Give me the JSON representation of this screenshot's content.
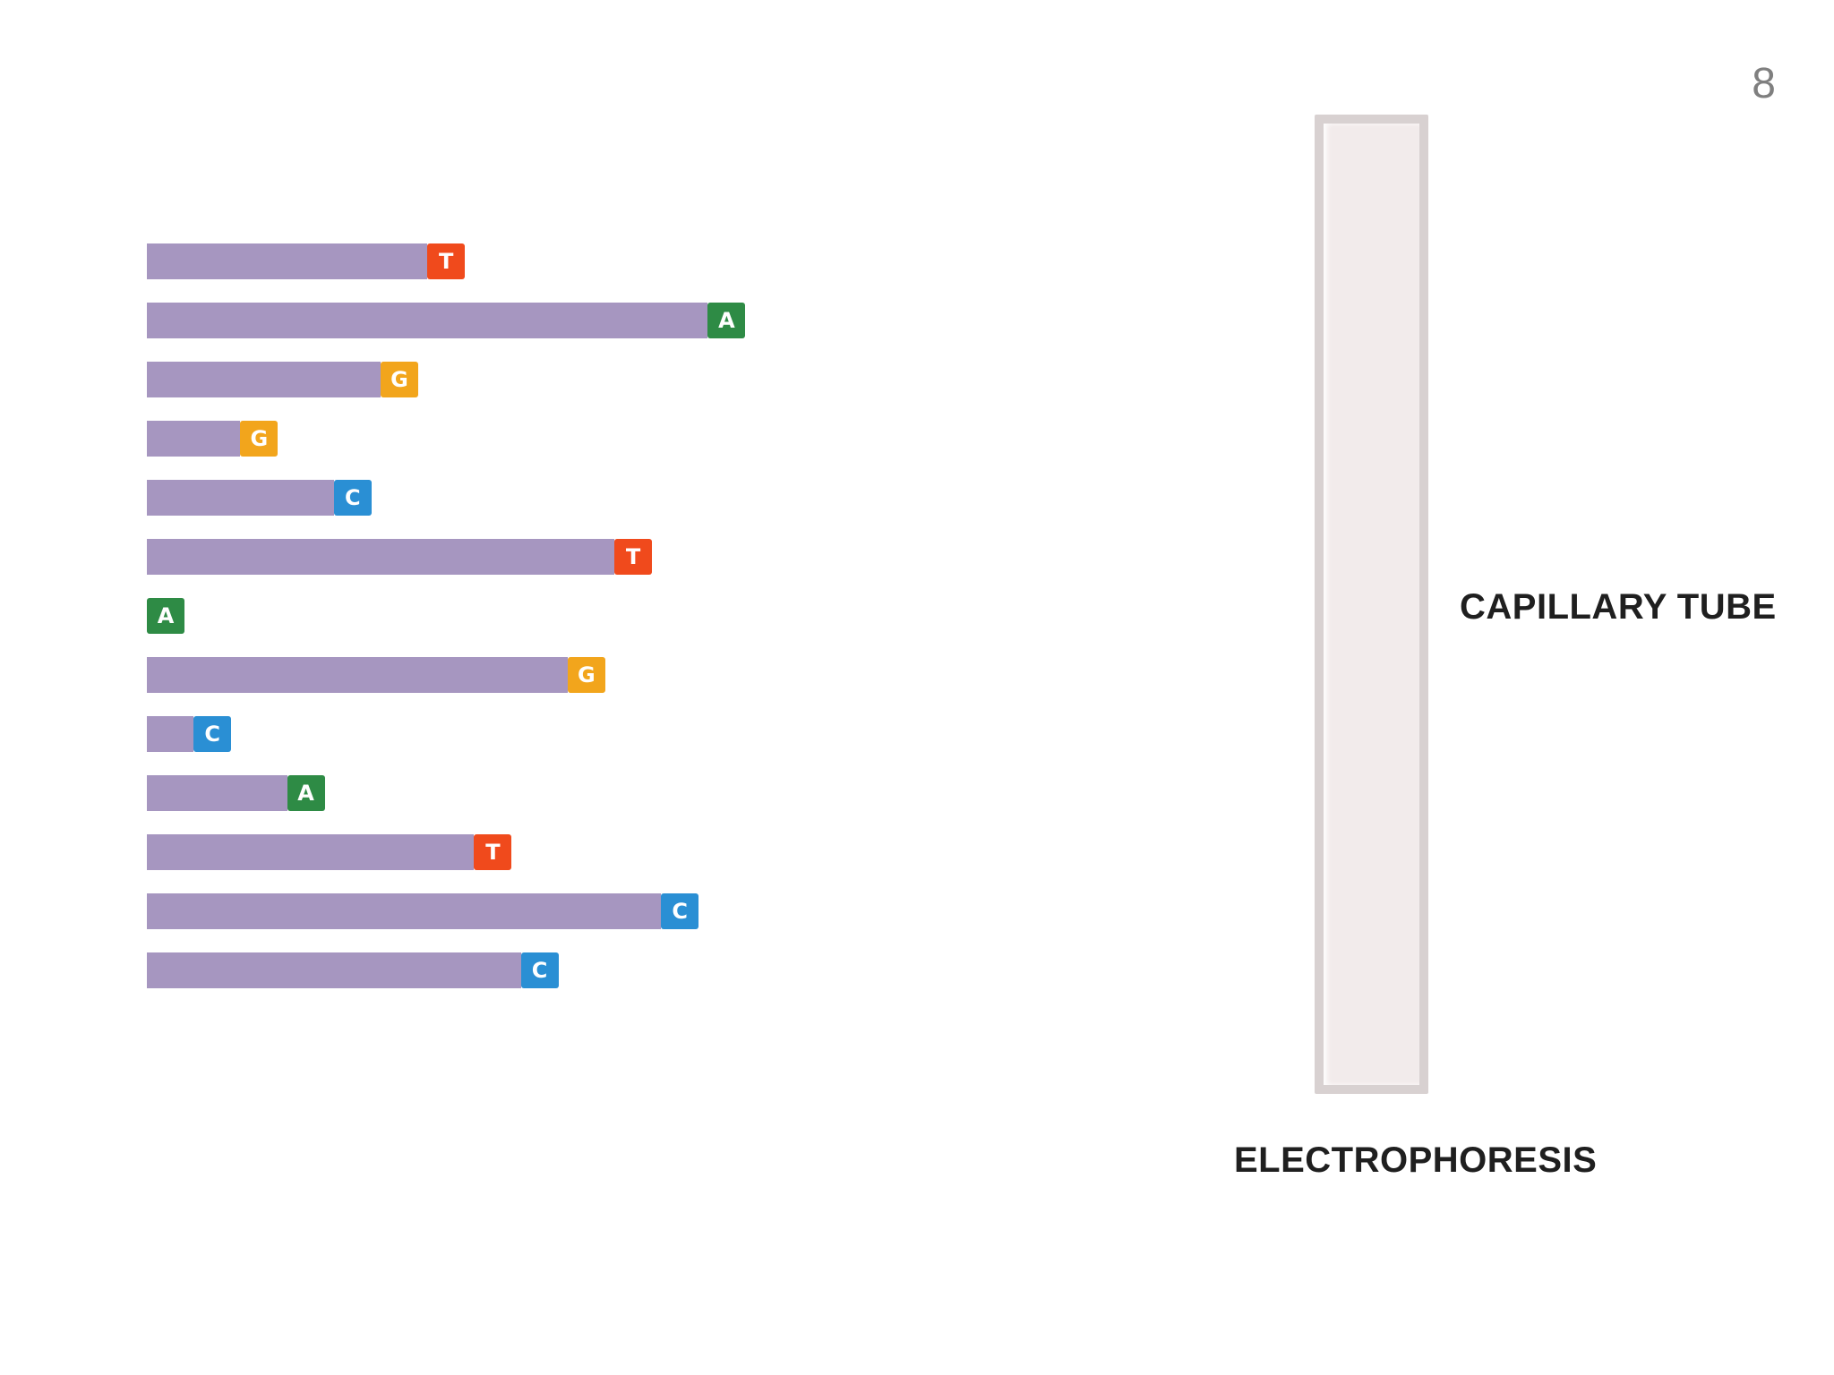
{
  "page_number": "8",
  "labels": {
    "capillary_tube": "CAPILLARY TUBE",
    "electrophoresis": "ELECTROPHORESIS"
  },
  "colors": {
    "strand": "#a696c0",
    "A": "#2e8b45",
    "C": "#2a8fd4",
    "G": "#f2a51c",
    "T": "#f04a1c"
  },
  "fragments": [
    {
      "base": "T",
      "length": 7
    },
    {
      "base": "A",
      "length": 13
    },
    {
      "base": "G",
      "length": 6
    },
    {
      "base": "G",
      "length": 3
    },
    {
      "base": "C",
      "length": 5
    },
    {
      "base": "T",
      "length": 11
    },
    {
      "base": "A",
      "length": 1
    },
    {
      "base": "G",
      "length": 10
    },
    {
      "base": "C",
      "length": 2
    },
    {
      "base": "A",
      "length": 4
    },
    {
      "base": "T",
      "length": 8
    },
    {
      "base": "C",
      "length": 12
    },
    {
      "base": "C",
      "length": 9
    }
  ]
}
